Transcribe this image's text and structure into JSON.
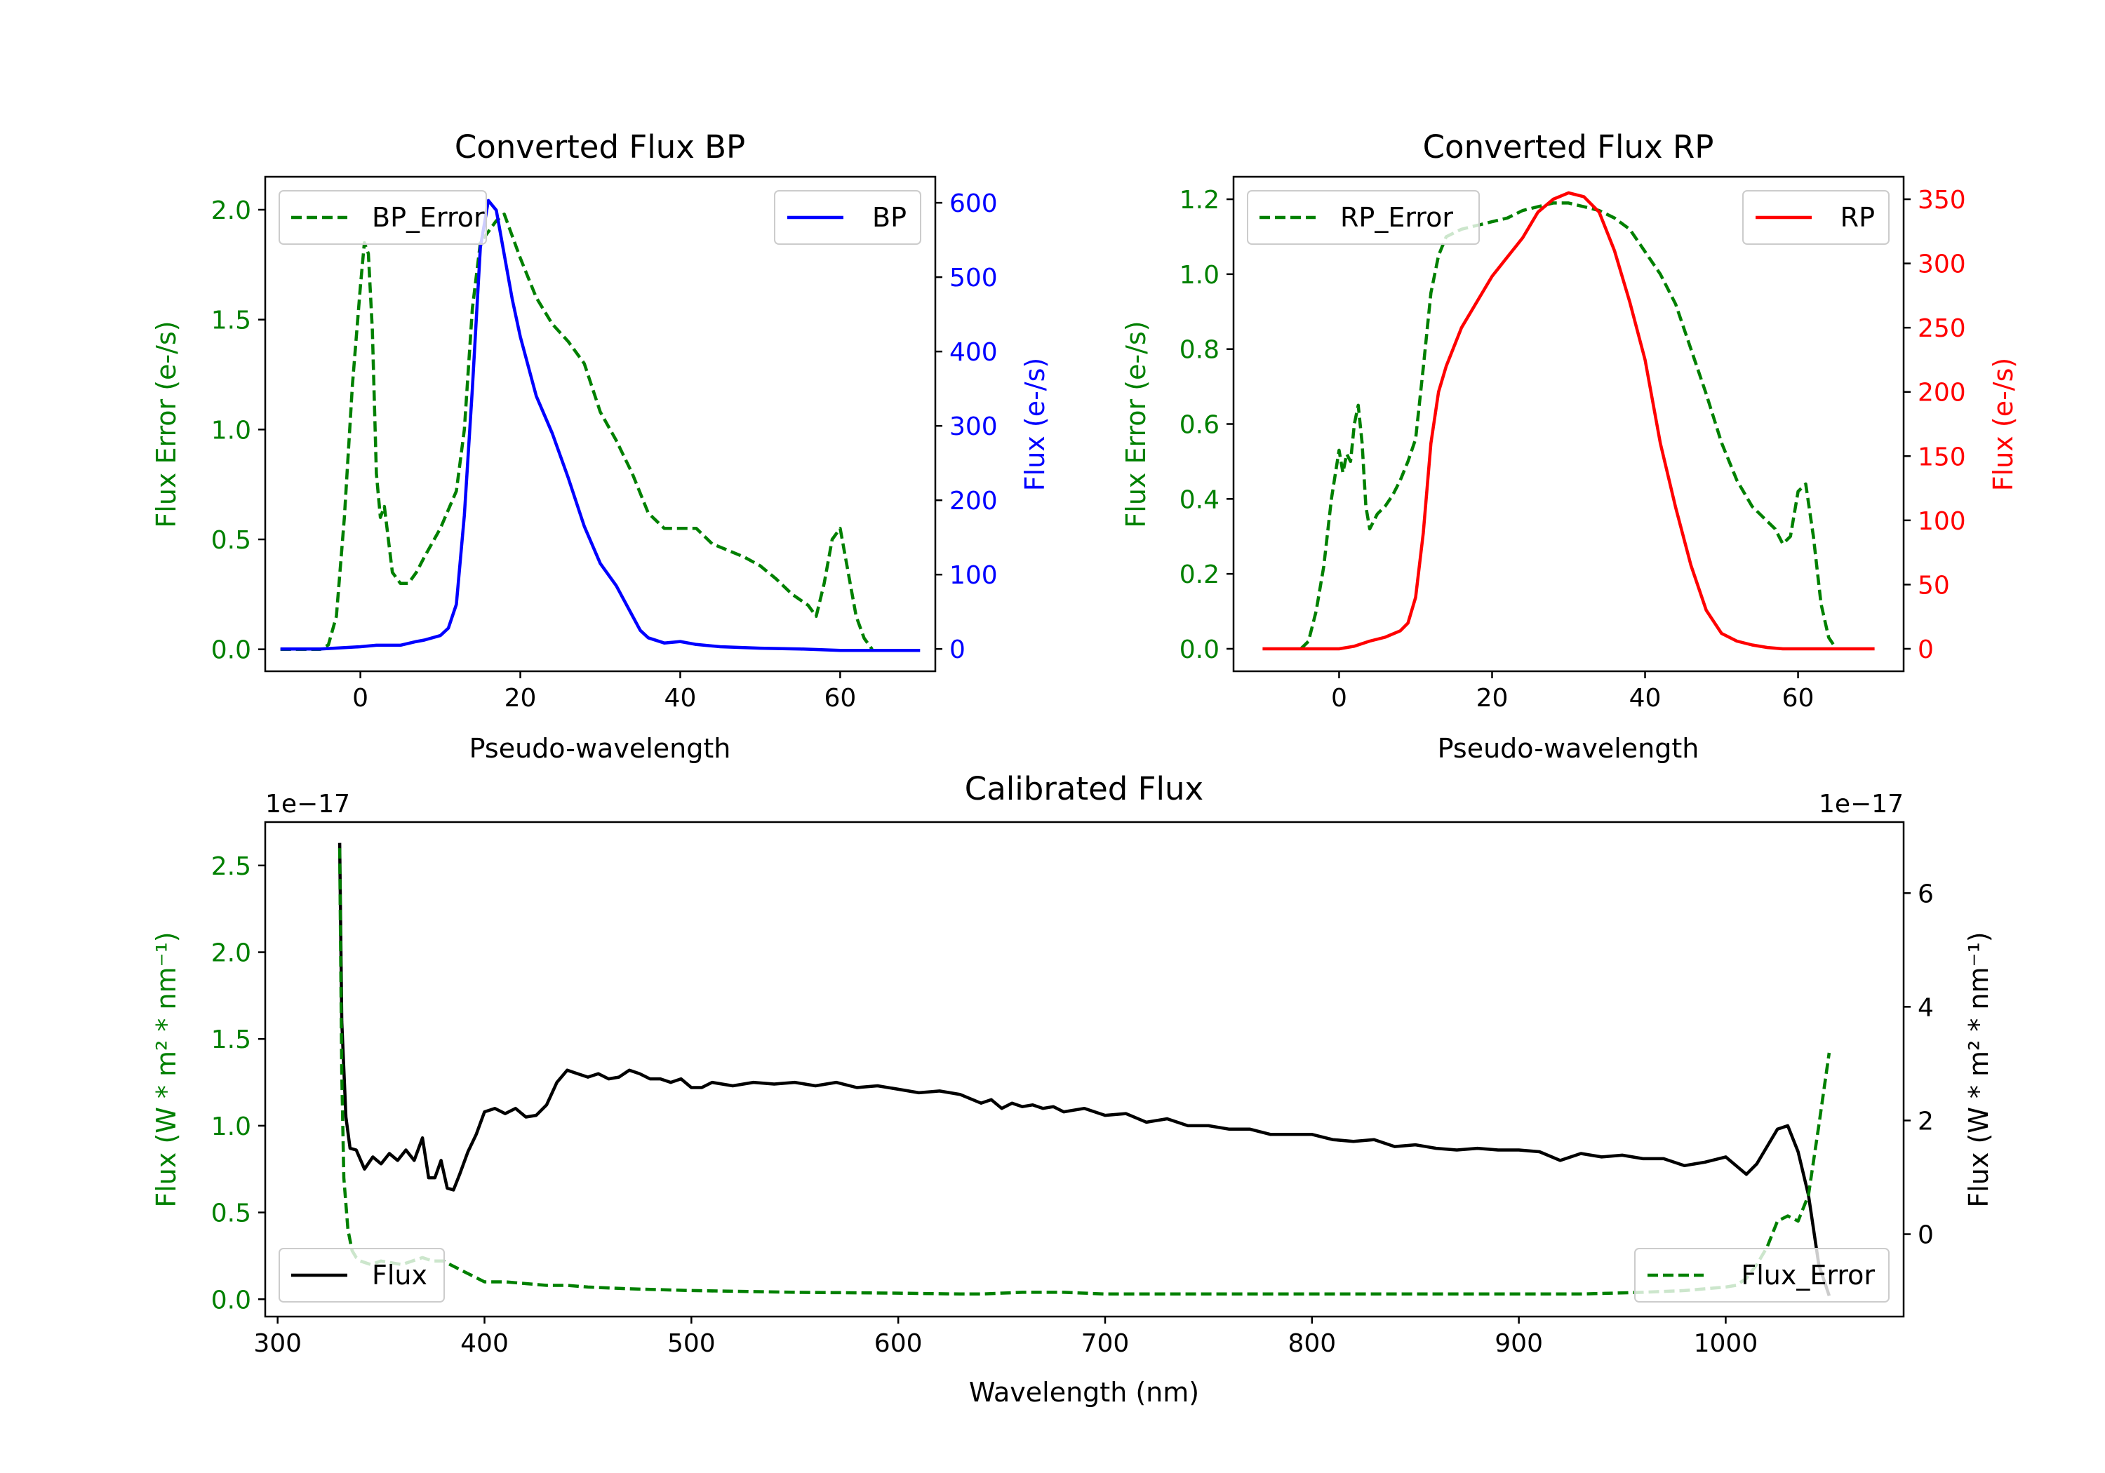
{
  "colors": {
    "error": "#008000",
    "bp": "#0000ff",
    "rp": "#ff0000",
    "flux": "#000000",
    "axis": "#000000"
  },
  "chart_data": [
    {
      "id": "bp",
      "type": "line",
      "title": "Converted Flux BP",
      "xlabel": "Pseudo-wavelength",
      "ylabel_left": "Flux Error (e-/s)",
      "ylabel_right": "Flux (e-/s)",
      "xlim": [
        -11.9,
        71.9
      ],
      "ylim_left": [
        -0.1,
        2.15
      ],
      "ylim_right": [
        -30,
        635
      ],
      "xticks": [
        0,
        20,
        40,
        60
      ],
      "yticks_left": [
        0.0,
        0.5,
        1.0,
        1.5,
        2.0
      ],
      "yticks_right": [
        0,
        100,
        200,
        300,
        400,
        500,
        600
      ],
      "legend_left": "top-left",
      "legend_right": "top-right",
      "series": [
        {
          "name": "BP_Error",
          "axis": "left",
          "style": "dashed",
          "color": "#008000",
          "x": [
            -10,
            -5,
            -4,
            -3,
            -2,
            -1,
            0,
            0.5,
            1,
            1.5,
            2,
            2.5,
            3,
            3.5,
            4,
            5,
            6,
            7,
            8,
            10,
            12,
            13,
            14,
            15,
            16,
            17,
            18,
            20,
            22,
            24,
            26,
            28,
            30,
            32,
            34,
            36,
            38,
            40,
            42,
            44,
            46,
            48,
            50,
            52,
            54,
            56,
            57,
            58,
            59,
            60,
            61,
            62,
            63,
            64
          ],
          "values": [
            0,
            0,
            0.02,
            0.15,
            0.6,
            1.2,
            1.65,
            1.85,
            1.8,
            1.45,
            0.8,
            0.6,
            0.65,
            0.5,
            0.35,
            0.3,
            0.3,
            0.35,
            0.42,
            0.55,
            0.72,
            1.0,
            1.55,
            1.85,
            1.9,
            1.95,
            1.98,
            1.78,
            1.6,
            1.48,
            1.4,
            1.3,
            1.08,
            0.95,
            0.8,
            0.62,
            0.55,
            0.55,
            0.55,
            0.48,
            0.45,
            0.42,
            0.38,
            0.32,
            0.25,
            0.2,
            0.15,
            0.3,
            0.5,
            0.55,
            0.35,
            0.15,
            0.05,
            0.0
          ]
        },
        {
          "name": "BP",
          "axis": "right",
          "style": "solid",
          "color": "#0000ff",
          "x": [
            -10,
            -5,
            0,
            2,
            5,
            7,
            8,
            10,
            11,
            12,
            13,
            14,
            15,
            16,
            17,
            18,
            19,
            20,
            22,
            24,
            26,
            28,
            30,
            32,
            34,
            35,
            36,
            38,
            40,
            42,
            45,
            50,
            55,
            60,
            65,
            70
          ],
          "values": [
            0,
            0,
            3,
            5,
            5,
            10,
            12,
            18,
            28,
            60,
            180,
            350,
            540,
            603,
            590,
            530,
            470,
            420,
            340,
            290,
            230,
            165,
            115,
            85,
            45,
            25,
            15,
            8,
            10,
            6,
            3,
            1,
            0,
            -2,
            -2,
            -2
          ]
        }
      ]
    },
    {
      "id": "rp",
      "type": "line",
      "title": "Converted Flux RP",
      "xlabel": "Pseudo-wavelength",
      "ylabel_left": "Flux Error (e-/s)",
      "ylabel_right": "Flux (e-/s)",
      "xlim": [
        -13.8,
        73.8
      ],
      "ylim_left": [
        -0.06,
        1.26
      ],
      "ylim_right": [
        -17.5,
        367.5
      ],
      "xticks": [
        0,
        20,
        40,
        60
      ],
      "yticks_left": [
        0.0,
        0.2,
        0.4,
        0.6,
        0.8,
        1.0,
        1.2
      ],
      "yticks_right": [
        0,
        50,
        100,
        150,
        200,
        250,
        300,
        350
      ],
      "legend_left": "top-left",
      "legend_right": "top-right",
      "series": [
        {
          "name": "RP_Error",
          "axis": "left",
          "style": "dashed",
          "color": "#008000",
          "x": [
            -5,
            -4,
            -3,
            -2,
            -1,
            0,
            0.5,
            1,
            1.5,
            2,
            2.5,
            3,
            3.5,
            4,
            5,
            6,
            7,
            8,
            9,
            10,
            11,
            12,
            13,
            14,
            15,
            16,
            18,
            20,
            22,
            24,
            26,
            28,
            30,
            32,
            34,
            36,
            38,
            40,
            42,
            44,
            46,
            48,
            50,
            52,
            54,
            55,
            56,
            57,
            58,
            59,
            60,
            61,
            62,
            63,
            64,
            65
          ],
          "values": [
            0,
            0.02,
            0.1,
            0.22,
            0.4,
            0.53,
            0.47,
            0.52,
            0.5,
            0.6,
            0.65,
            0.55,
            0.38,
            0.32,
            0.36,
            0.38,
            0.41,
            0.45,
            0.5,
            0.56,
            0.75,
            0.95,
            1.05,
            1.1,
            1.11,
            1.12,
            1.13,
            1.14,
            1.15,
            1.17,
            1.18,
            1.19,
            1.19,
            1.18,
            1.17,
            1.15,
            1.12,
            1.06,
            1.0,
            0.92,
            0.8,
            0.68,
            0.55,
            0.45,
            0.38,
            0.36,
            0.34,
            0.32,
            0.28,
            0.3,
            0.42,
            0.44,
            0.3,
            0.12,
            0.03,
            0.0
          ]
        },
        {
          "name": "RP",
          "axis": "right",
          "style": "solid",
          "color": "#ff0000",
          "x": [
            -10,
            -5,
            0,
            2,
            4,
            6,
            8,
            9,
            10,
            11,
            12,
            13,
            14,
            16,
            18,
            20,
            22,
            24,
            26,
            28,
            30,
            32,
            34,
            36,
            38,
            40,
            42,
            44,
            46,
            48,
            50,
            52,
            54,
            56,
            58,
            60,
            62,
            65,
            70
          ],
          "values": [
            0,
            0,
            0,
            2,
            6,
            9,
            14,
            20,
            40,
            90,
            160,
            200,
            220,
            250,
            270,
            290,
            305,
            320,
            340,
            350,
            355,
            352,
            340,
            310,
            270,
            225,
            160,
            110,
            65,
            30,
            12,
            6,
            3,
            1,
            0,
            0,
            0,
            0,
            0
          ]
        }
      ]
    },
    {
      "id": "calibrated",
      "type": "line",
      "title": "Calibrated Flux",
      "xlabel": "Wavelength (nm)",
      "ylabel_left": "Flux (W * m² * nm⁻¹)",
      "ylabel_right": "Flux (W * m² * nm⁻¹)",
      "offset_left": "1e−17",
      "offset_right": "1e−17",
      "xlim": [
        294,
        1086
      ],
      "ylim_left": [
        -0.1,
        2.75
      ],
      "ylim_right": [
        -1.45,
        7.25
      ],
      "xticks": [
        300,
        400,
        500,
        600,
        700,
        800,
        900,
        1000
      ],
      "yticks_left": [
        0.0,
        0.5,
        1.0,
        1.5,
        2.0,
        2.5
      ],
      "yticks_right": [
        0,
        2,
        4,
        6
      ],
      "legend_left": "bottom-left",
      "legend_right": "bottom-right",
      "series": [
        {
          "name": "Flux",
          "axis": "left",
          "style": "solid",
          "color": "#000000",
          "x": [
            330,
            331,
            333,
            335,
            338,
            342,
            346,
            350,
            354,
            358,
            362,
            366,
            370,
            373,
            376,
            379,
            382,
            385,
            388,
            392,
            396,
            400,
            405,
            410,
            415,
            420,
            425,
            430,
            435,
            440,
            445,
            450,
            455,
            460,
            465,
            470,
            475,
            480,
            485,
            490,
            495,
            500,
            505,
            510,
            520,
            530,
            540,
            550,
            560,
            570,
            580,
            590,
            600,
            610,
            620,
            630,
            640,
            645,
            650,
            655,
            660,
            665,
            670,
            675,
            680,
            690,
            700,
            710,
            720,
            730,
            740,
            750,
            760,
            770,
            780,
            790,
            800,
            810,
            820,
            830,
            840,
            850,
            860,
            870,
            880,
            890,
            900,
            910,
            920,
            930,
            940,
            950,
            960,
            970,
            980,
            990,
            1000,
            1010,
            1015,
            1020,
            1025,
            1030,
            1035,
            1040,
            1045,
            1050
          ],
          "values": [
            2.63,
            1.6,
            1.05,
            0.87,
            0.86,
            0.75,
            0.82,
            0.78,
            0.84,
            0.8,
            0.86,
            0.8,
            0.93,
            0.7,
            0.7,
            0.8,
            0.64,
            0.63,
            0.72,
            0.85,
            0.95,
            1.08,
            1.1,
            1.07,
            1.1,
            1.05,
            1.06,
            1.12,
            1.25,
            1.32,
            1.3,
            1.28,
            1.3,
            1.27,
            1.28,
            1.32,
            1.3,
            1.27,
            1.27,
            1.25,
            1.27,
            1.22,
            1.22,
            1.25,
            1.23,
            1.25,
            1.24,
            1.25,
            1.23,
            1.25,
            1.22,
            1.23,
            1.21,
            1.19,
            1.2,
            1.18,
            1.13,
            1.15,
            1.1,
            1.13,
            1.11,
            1.12,
            1.1,
            1.11,
            1.08,
            1.1,
            1.06,
            1.07,
            1.02,
            1.04,
            1.0,
            1.0,
            0.98,
            0.98,
            0.95,
            0.95,
            0.95,
            0.92,
            0.91,
            0.92,
            0.88,
            0.89,
            0.87,
            0.86,
            0.87,
            0.86,
            0.86,
            0.85,
            0.8,
            0.84,
            0.82,
            0.83,
            0.81,
            0.81,
            0.77,
            0.79,
            0.82,
            0.72,
            0.78,
            0.88,
            0.98,
            1.0,
            0.85,
            0.6,
            0.2,
            0.02
          ]
        },
        {
          "name": "Flux_Error",
          "axis": "left",
          "style": "dashed",
          "color": "#008000",
          "x": [
            330,
            331,
            332,
            334,
            336,
            338,
            340,
            345,
            350,
            360,
            370,
            375,
            380,
            385,
            390,
            400,
            410,
            420,
            430,
            440,
            450,
            470,
            500,
            550,
            600,
            630,
            640,
            660,
            680,
            700,
            750,
            800,
            850,
            900,
            930,
            960,
            980,
            990,
            1000,
            1005,
            1010,
            1015,
            1020,
            1025,
            1030,
            1035,
            1040,
            1045,
            1050
          ],
          "values": [
            2.6,
            1.3,
            0.7,
            0.4,
            0.28,
            0.24,
            0.22,
            0.2,
            0.22,
            0.2,
            0.24,
            0.22,
            0.22,
            0.19,
            0.16,
            0.1,
            0.1,
            0.09,
            0.08,
            0.08,
            0.07,
            0.06,
            0.05,
            0.04,
            0.035,
            0.03,
            0.03,
            0.04,
            0.04,
            0.03,
            0.03,
            0.03,
            0.03,
            0.03,
            0.03,
            0.04,
            0.05,
            0.06,
            0.07,
            0.08,
            0.12,
            0.2,
            0.3,
            0.45,
            0.48,
            0.45,
            0.6,
            1.0,
            1.42
          ]
        }
      ]
    }
  ]
}
